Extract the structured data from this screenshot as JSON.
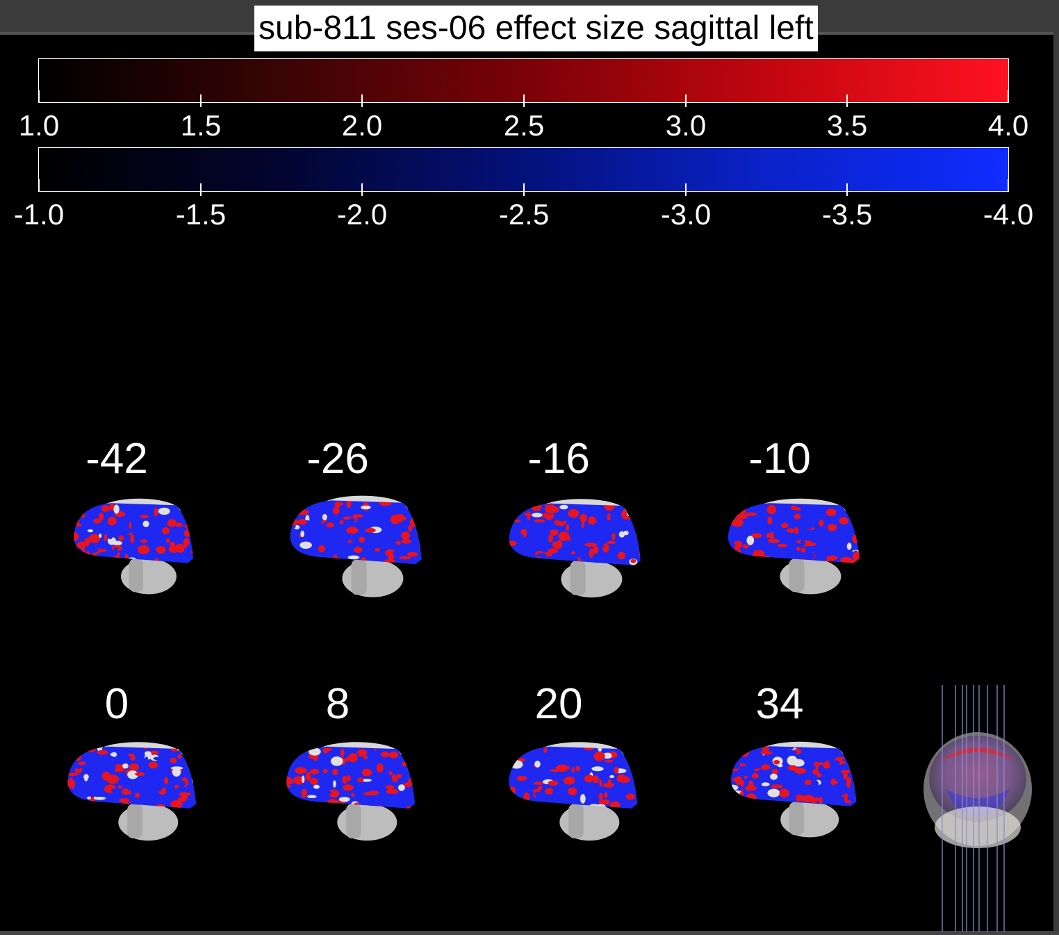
{
  "title": "sub-811 ses-06 effect size sagittal left",
  "colorbars": {
    "positive": {
      "ticks": [
        "1.0",
        "1.5",
        "2.0",
        "2.5",
        "3.0",
        "3.5",
        "4.0"
      ],
      "colors": [
        "#000000",
        "#ff1220"
      ]
    },
    "negative": {
      "ticks": [
        "-1.0",
        "-1.5",
        "-2.0",
        "-2.5",
        "-3.0",
        "-3.5",
        "-4.0"
      ],
      "colors": [
        "#000000",
        "#0f2cff"
      ]
    }
  },
  "slices": {
    "row1": [
      "-42",
      "-26",
      "-16",
      "-10"
    ],
    "row2": [
      "0",
      "8",
      "20",
      "34"
    ]
  },
  "overlay_colors": {
    "positive": "#e8141e",
    "negative": "#1e28f0",
    "anatomy": "#bdbdbd"
  }
}
